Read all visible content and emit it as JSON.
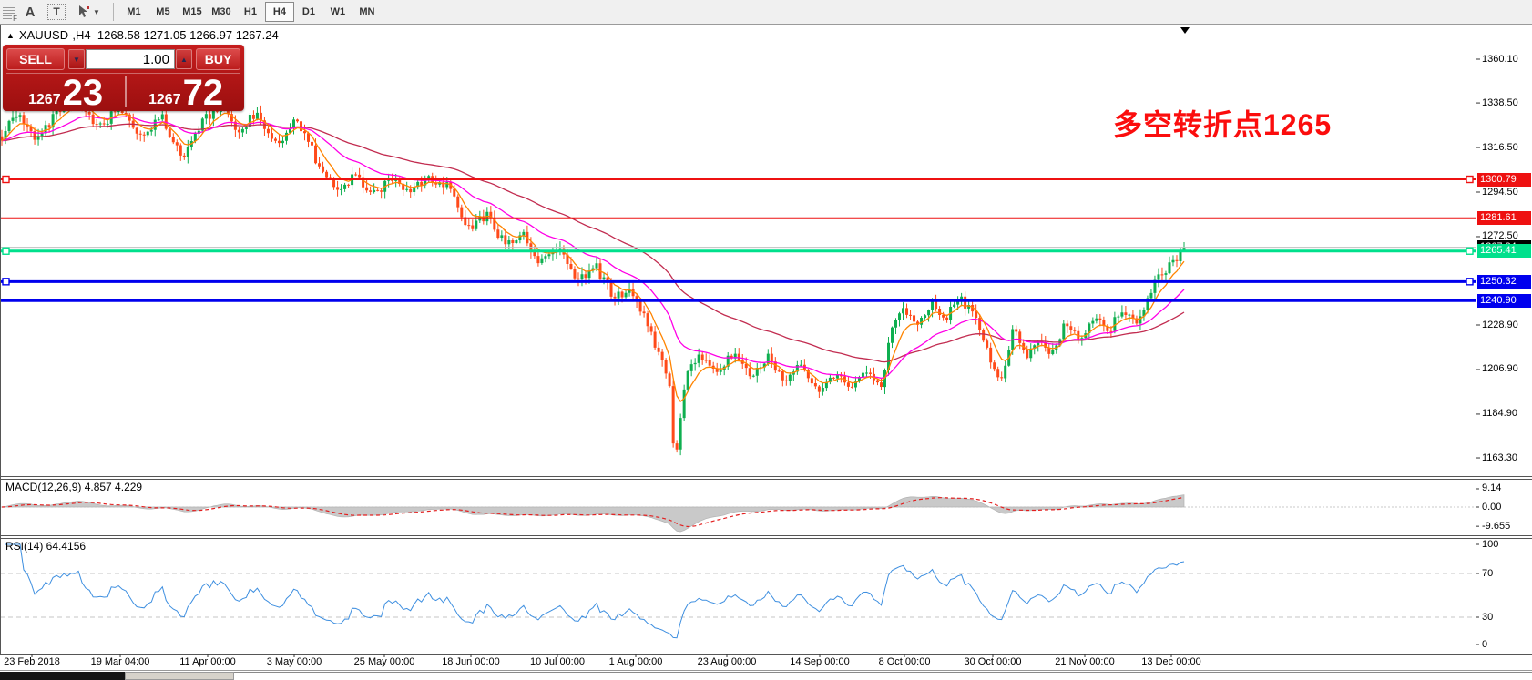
{
  "toolbar": {
    "grid_icon_letter": "F",
    "label_icon": "A",
    "text_icon": "T",
    "dropdown_caret": "▼",
    "timeframes": [
      "M1",
      "M5",
      "M15",
      "M30",
      "H1",
      "H4",
      "D1",
      "W1",
      "MN"
    ],
    "active_timeframe": "H4"
  },
  "chart_header": {
    "collapse_arrow": "▲",
    "symbol": "XAUUSD-,H4",
    "ohlc_text": "1268.58 1271.05 1266.97 1267.24"
  },
  "trade_panel": {
    "sell_label": "SELL",
    "buy_label": "BUY",
    "volume": "1.00",
    "spin_down": "▼",
    "spin_up": "▲",
    "sell_price_main": "1267",
    "sell_price_big": "23",
    "buy_price_main": "1267",
    "buy_price_big": "72"
  },
  "annotation": {
    "text": "多空转折点1265",
    "color": "#fb0d0d"
  },
  "price_axis": {
    "ticks": [
      {
        "label": "1360.10",
        "value": 1360.1
      },
      {
        "label": "1338.50",
        "value": 1338.5
      },
      {
        "label": "1316.50",
        "value": 1316.5
      },
      {
        "label": "1294.50",
        "value": 1294.5
      },
      {
        "label": "1272.50",
        "value": 1272.5
      },
      {
        "label": "1228.90",
        "value": 1228.9
      },
      {
        "label": "1206.90",
        "value": 1206.9
      },
      {
        "label": "1184.90",
        "value": 1184.9
      },
      {
        "label": "1163.30",
        "value": 1163.3
      }
    ],
    "levels": [
      {
        "label": "1300.79",
        "value": 1300.79,
        "color": "#ee1111",
        "line_color": "#ee1111",
        "text_color": "#ffffff",
        "width": 2,
        "handles": true
      },
      {
        "label": "1281.61",
        "value": 1281.61,
        "color": "#ee1111",
        "line_color": "#ee1111",
        "text_color": "#ffffff",
        "width": 2,
        "handles": false
      },
      {
        "label": "1267.24",
        "value": 1267.24,
        "color": "#000000",
        "line_color": "#c0c0c0",
        "text_color": "#ffffff",
        "width": 1,
        "handles": false,
        "bid_line": true
      },
      {
        "label": "1265.41",
        "value": 1265.41,
        "color": "#00e08c",
        "line_color": "#00e08c",
        "text_color": "#ffffff",
        "width": 3,
        "handles": true
      },
      {
        "label": "1250.32",
        "value": 1250.32,
        "color": "#0000ee",
        "line_color": "#0000ee",
        "text_color": "#ffffff",
        "width": 3,
        "handles": true
      },
      {
        "label": "1240.90",
        "value": 1240.9,
        "color": "#0000ee",
        "line_color": "#0000ee",
        "text_color": "#ffffff",
        "width": 3,
        "handles": false
      }
    ]
  },
  "macd_panel": {
    "title": "MACD(12,26,9) 4.857 4.229",
    "ticks": [
      {
        "label": "9.14",
        "value": 9.14
      },
      {
        "label": "0.00",
        "value": 0
      },
      {
        "label": "-9.655",
        "value": -9.655
      }
    ]
  },
  "rsi_panel": {
    "title": "RSI(14) 64.4156",
    "ticks": [
      {
        "label": "100",
        "value": 100
      },
      {
        "label": "70",
        "value": 70
      },
      {
        "label": "30",
        "value": 30
      },
      {
        "label": "0",
        "value": 0
      }
    ],
    "dashed_levels": [
      70,
      30
    ]
  },
  "time_axis": {
    "labels": [
      "23 Feb 2018",
      "19 Mar 04:00",
      "11 Apr 00:00",
      "3 May 00:00",
      "25 May 00:00",
      "18 Jun 00:00",
      "10 Jul 00:00",
      "1 Aug 00:00",
      "23 Aug 00:00",
      "14 Sep 00:00",
      "8 Oct 00:00",
      "30 Oct 00:00",
      "21 Nov 00:00",
      "13 Dec 00:00"
    ]
  },
  "chart_data": {
    "type": "candlestick",
    "symbol": "XAUUSD-",
    "timeframe": "H4",
    "open": 1268.58,
    "high": 1271.05,
    "low": 1266.97,
    "close": 1267.24,
    "bid": 1267.23,
    "ask": 1267.72,
    "visible_price_range": [
      1154,
      1378
    ],
    "y_ticks": [
      1360.1,
      1338.5,
      1316.5,
      1294.5,
      1272.5,
      1228.9,
      1206.9,
      1184.9,
      1163.3
    ],
    "x_labels": [
      "23 Feb 2018",
      "19 Mar 04:00",
      "11 Apr 00:00",
      "3 May 00:00",
      "25 May 00:00",
      "18 Jun 00:00",
      "10 Jul 00:00",
      "1 Aug 00:00",
      "23 Aug 00:00",
      "14 Sep 00:00",
      "8 Oct 00:00",
      "30 Oct 00:00",
      "21 Nov 00:00",
      "13 Dec 00:00"
    ],
    "horizontal_lines": [
      1300.79,
      1281.61,
      1267.24,
      1265.41,
      1250.32,
      1240.9
    ],
    "trend_points": [
      [
        0,
        1322
      ],
      [
        0.012,
        1334
      ],
      [
        0.03,
        1320
      ],
      [
        0.048,
        1335
      ],
      [
        0.065,
        1341
      ],
      [
        0.082,
        1326
      ],
      [
        0.1,
        1337
      ],
      [
        0.118,
        1322
      ],
      [
        0.135,
        1332
      ],
      [
        0.152,
        1312
      ],
      [
        0.168,
        1328
      ],
      [
        0.185,
        1338
      ],
      [
        0.2,
        1324
      ],
      [
        0.215,
        1334
      ],
      [
        0.232,
        1317
      ],
      [
        0.248,
        1329
      ],
      [
        0.258,
        1321
      ],
      [
        0.27,
        1305
      ],
      [
        0.285,
        1297
      ],
      [
        0.3,
        1303
      ],
      [
        0.315,
        1293
      ],
      [
        0.33,
        1301
      ],
      [
        0.345,
        1295
      ],
      [
        0.36,
        1302
      ],
      [
        0.378,
        1297
      ],
      [
        0.396,
        1276
      ],
      [
        0.41,
        1283
      ],
      [
        0.425,
        1269
      ],
      [
        0.44,
        1275
      ],
      [
        0.455,
        1259
      ],
      [
        0.47,
        1267
      ],
      [
        0.487,
        1250
      ],
      [
        0.503,
        1257
      ],
      [
        0.518,
        1242
      ],
      [
        0.532,
        1247
      ],
      [
        0.545,
        1230
      ],
      [
        0.558,
        1212
      ],
      [
        0.565,
        1199
      ],
      [
        0.569,
        1158
      ],
      [
        0.578,
        1203
      ],
      [
        0.592,
        1214
      ],
      [
        0.606,
        1206
      ],
      [
        0.62,
        1217
      ],
      [
        0.634,
        1203
      ],
      [
        0.648,
        1213
      ],
      [
        0.662,
        1199
      ],
      [
        0.676,
        1209
      ],
      [
        0.69,
        1197
      ],
      [
        0.704,
        1205
      ],
      [
        0.718,
        1196
      ],
      [
        0.732,
        1207
      ],
      [
        0.745,
        1199
      ],
      [
        0.752,
        1228
      ],
      [
        0.762,
        1238
      ],
      [
        0.774,
        1227
      ],
      [
        0.786,
        1241
      ],
      [
        0.798,
        1231
      ],
      [
        0.81,
        1243
      ],
      [
        0.822,
        1234
      ],
      [
        0.835,
        1215
      ],
      [
        0.845,
        1199
      ],
      [
        0.856,
        1230
      ],
      [
        0.866,
        1212
      ],
      [
        0.877,
        1223
      ],
      [
        0.888,
        1214
      ],
      [
        0.9,
        1230
      ],
      [
        0.912,
        1220
      ],
      [
        0.924,
        1234
      ],
      [
        0.936,
        1225
      ],
      [
        0.948,
        1238
      ],
      [
        0.96,
        1230
      ],
      [
        0.972,
        1247
      ],
      [
        0.984,
        1256
      ],
      [
        0.995,
        1263
      ],
      [
        1,
        1269
      ]
    ],
    "colors": {
      "up": "#0faf50",
      "down": "#ff4a1a",
      "ma_fast": "#ff8400",
      "ma_mid": "#ff00e6",
      "ma_slow": "#c22c50",
      "macd_fill": "#c9c9c9",
      "macd_signal": "#e31f1f",
      "rsi": "#3e8fe0"
    },
    "indicators": [
      {
        "name": "MACD",
        "params": [
          12,
          26,
          9
        ],
        "values": [
          4.857,
          4.229
        ]
      },
      {
        "name": "RSI",
        "params": [
          14
        ],
        "values": [
          64.4156
        ]
      }
    ]
  }
}
